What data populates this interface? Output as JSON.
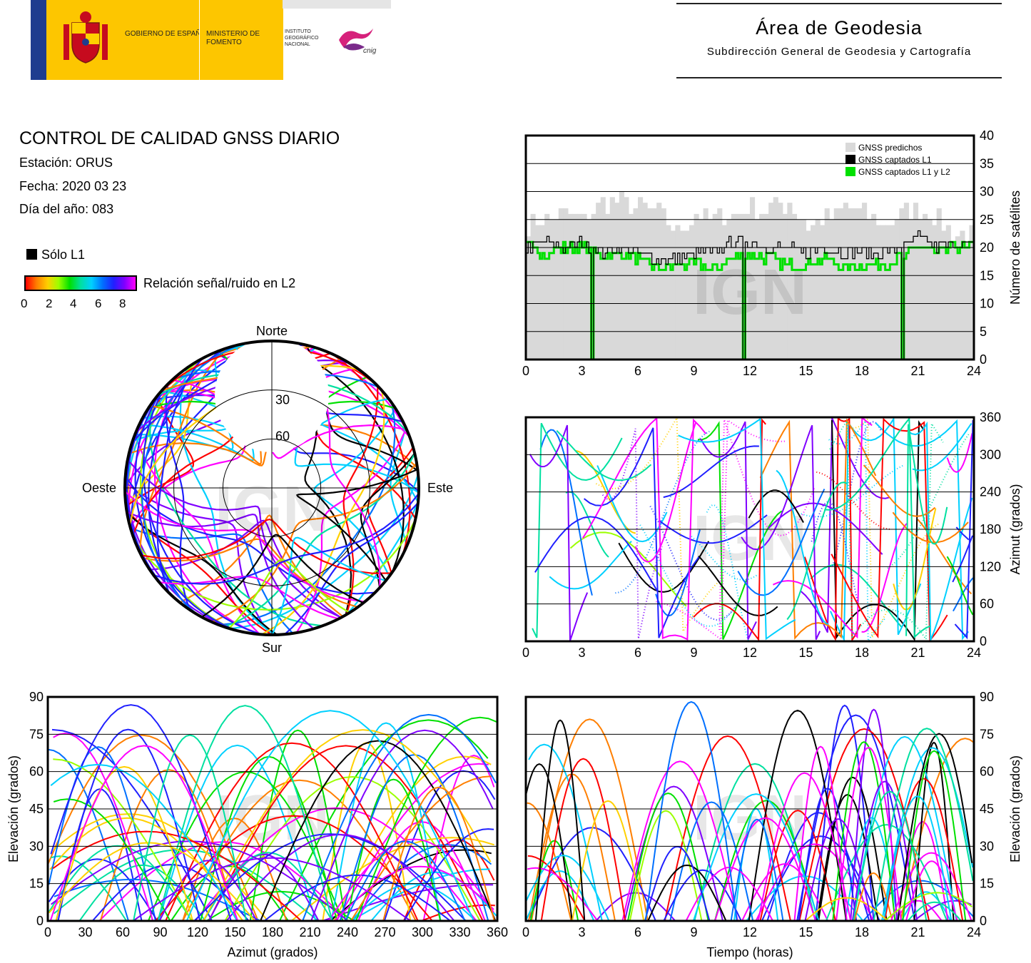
{
  "header": {
    "gobierno_label": "GOBIERNO DE ESPAÑA",
    "ministerio_label": "MINISTERIO DE FOMENTO",
    "instituto_label": "INSTITUTO GEOGRÁFICO NACIONAL",
    "cnig_label": "cnig",
    "area_title": "Área de Geodesia",
    "area_subtitle": "Subdirección General de Geodesia y Cartografía"
  },
  "info": {
    "title": "CONTROL DE CALIDAD GNSS DIARIO",
    "station": "Estación: ORUS",
    "date": "Fecha: 2020 03 23",
    "doy": "Día del año: 083",
    "l1_only": "Sólo L1",
    "snr_label": "Relación señal/ruido en L2",
    "snr_ticks": [
      "0",
      "2",
      "4",
      "6",
      "8"
    ]
  },
  "watermark": "IGN",
  "colors": {
    "predicted": "#d9d9d9",
    "captured_l1": "#000000",
    "captured_l1_l2": "#00e000",
    "snr_scale": [
      "#ff0000",
      "#ff7f00",
      "#ffd000",
      "#9cff00",
      "#00e000",
      "#00e0a0",
      "#00d0ff",
      "#0070ff",
      "#2020ff",
      "#8000ff",
      "#ff00ff"
    ]
  },
  "chart_data": [
    {
      "type": "area",
      "id": "satellites",
      "ylabel": "Número de satélites",
      "xlim": [
        0,
        24
      ],
      "ylim": [
        0,
        40
      ],
      "xticks": [
        0,
        3,
        6,
        9,
        12,
        15,
        18,
        21,
        24
      ],
      "yticks": [
        0,
        5,
        10,
        15,
        20,
        25,
        30,
        35,
        40
      ],
      "grid": true,
      "legend_position": "top-right",
      "x": [
        0,
        1,
        2,
        3,
        4,
        5,
        6,
        7,
        8,
        9,
        10,
        11,
        12,
        13,
        14,
        15,
        16,
        17,
        18,
        19,
        20,
        21,
        22,
        23,
        24
      ],
      "series": [
        {
          "name": "GNSS predichos",
          "values": [
            24,
            25,
            26,
            25,
            28,
            28,
            27,
            26,
            23,
            26,
            25,
            26,
            27,
            27,
            28,
            24,
            25,
            27,
            26,
            24,
            26,
            27,
            25,
            22,
            23
          ]
        },
        {
          "name": "GNSS captados L1",
          "values": [
            20,
            21,
            20,
            21,
            19,
            20,
            19,
            18,
            18,
            19,
            19,
            21,
            21,
            20,
            20,
            19,
            20,
            19,
            19,
            19,
            20,
            22,
            20,
            21,
            20
          ]
        },
        {
          "name": "GNSS captados L1 y L2",
          "values": [
            20,
            19,
            20,
            20,
            18,
            19,
            18,
            16,
            17,
            17,
            16,
            18,
            19,
            18,
            17,
            17,
            18,
            16,
            17,
            17,
            18,
            20,
            19,
            20,
            20
          ]
        }
      ],
      "dropouts": [
        3.5,
        11.6,
        20.1
      ]
    },
    {
      "type": "scatter",
      "id": "azimuth_time",
      "ylabel": "Azimut (grados)",
      "xlim": [
        0,
        24
      ],
      "ylim": [
        0,
        360
      ],
      "xticks": [
        0,
        3,
        6,
        9,
        12,
        15,
        18,
        21,
        24
      ],
      "yticks": [
        0,
        60,
        120,
        180,
        240,
        300,
        360
      ],
      "grid": true
    },
    {
      "type": "scatter",
      "id": "elevation_azimuth",
      "xlabel": "Azimut (grados)",
      "ylabel": "Elevación (grados)",
      "xlim": [
        0,
        360
      ],
      "ylim": [
        0,
        90
      ],
      "xticks": [
        0,
        30,
        60,
        90,
        120,
        150,
        180,
        210,
        240,
        270,
        300,
        330,
        360
      ],
      "yticks": [
        0,
        15,
        30,
        45,
        60,
        75,
        90
      ],
      "grid": true
    },
    {
      "type": "scatter",
      "id": "elevation_time",
      "xlabel": "Tiempo (horas)",
      "ylabel": "Elevación (grados)",
      "xlim": [
        0,
        24
      ],
      "ylim": [
        0,
        90
      ],
      "xticks": [
        0,
        3,
        6,
        9,
        12,
        15,
        18,
        21,
        24
      ],
      "yticks": [
        0,
        15,
        30,
        45,
        60,
        75,
        90
      ],
      "grid": true
    },
    {
      "type": "scatter",
      "id": "skyplot",
      "labels": {
        "north": "Norte",
        "south": "Sur",
        "west": "Oeste",
        "east": "Este"
      },
      "rings": [
        "30",
        "60"
      ]
    }
  ]
}
